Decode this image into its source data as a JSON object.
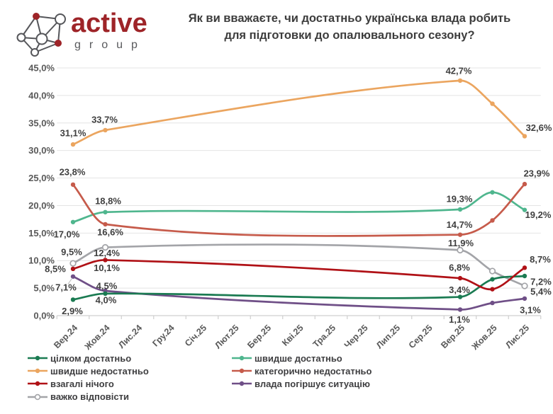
{
  "header": {
    "logo_brand": "active",
    "logo_sub": "group",
    "title_line1": "Як ви вважаєте, чи достатньо українська влада робить",
    "title_line2": "для підготовки до опалювального сезону?"
  },
  "colors": {
    "text_dark": "#3F3F3F",
    "axis_text": "#595959",
    "gridline": "#E4E4E4",
    "axis_line": "#CFCFCF",
    "brand_red": "#9E2428",
    "brand_gray": "#58595C"
  },
  "chart_data": {
    "type": "line",
    "title": "Як ви вважаєте, чи достатньо українська влада робить для підготовки до опалювального сезону?",
    "categories": [
      "Вер.24",
      "Жов.24",
      "Лис.24",
      "Гру.24",
      "Січ.25",
      "Лют.25",
      "Бер.25",
      "Кві.25",
      "Тра.25",
      "Чер.25",
      "Лип.25",
      "Сер.25",
      "Вер.25",
      "Жов.25",
      "Лис.25"
    ],
    "ylim": [
      0,
      45
    ],
    "ytick_step": 5,
    "ytick_labels": [
      "0,0%",
      "5,0%",
      "10,0%",
      "15,0%",
      "20,0%",
      "25,0%",
      "30,0%",
      "35,0%",
      "40,0%",
      "45,0%"
    ],
    "grid": true,
    "legend_position": "bottom-left two columns",
    "note": "Survey answers exist only for Вер.24, Жов.24, Вер.25, Жов.25, Лис.25; smoothed lines interpolate the gap. Жов.25 points are unlabeled in the image (values estimated from pixels).",
    "series": [
      {
        "name": "цілком достатньо",
        "color": "#1B7B52",
        "marker": "filled",
        "points": [
          {
            "cat": "Вер.24",
            "y": 2.9,
            "label": "2,9%",
            "dx": -1,
            "dy": 16
          },
          {
            "cat": "Жов.24",
            "y": 4.0,
            "label": "4,0%",
            "dx": 1,
            "dy": 9
          },
          {
            "cat": "Вер.25",
            "y": 3.4,
            "label": "3,4%",
            "dx": -1,
            "dy": -10
          },
          {
            "cat": "Жов.25",
            "y": 6.6,
            "estimated": true
          },
          {
            "cat": "Лис.25",
            "y": 7.2,
            "label": "7,2%",
            "dx": 23,
            "dy": 8
          }
        ]
      },
      {
        "name": "швидше достатньо",
        "color": "#4FB68E",
        "marker": "filled",
        "points": [
          {
            "cat": "Вер.24",
            "y": 17.0,
            "label": "17,0%",
            "dx": -9,
            "dy": 17
          },
          {
            "cat": "Жов.24",
            "y": 18.8,
            "label": "18,8%",
            "dx": 4,
            "dy": -16
          },
          {
            "cat": "Вер.25",
            "y": 19.3,
            "label": "19,3%",
            "dx": -1,
            "dy": -15
          },
          {
            "cat": "Жов.25",
            "y": 22.4,
            "estimated": true
          },
          {
            "cat": "Лис.25",
            "y": 19.2,
            "label": "19,2%",
            "dx": 19,
            "dy": 7
          }
        ]
      },
      {
        "name": "швидше недостатньо",
        "color": "#EBA55F",
        "marker": "filled",
        "points": [
          {
            "cat": "Вер.24",
            "y": 31.1,
            "label": "31,1%",
            "dx": 0,
            "dy": -16
          },
          {
            "cat": "Жов.24",
            "y": 33.7,
            "label": "33,7%",
            "dx": -1,
            "dy": -15
          },
          {
            "cat": "Вер.25",
            "y": 42.7,
            "label": "42,7%",
            "dx": -2,
            "dy": -14
          },
          {
            "cat": "Жов.25",
            "y": 38.5,
            "estimated": true
          },
          {
            "cat": "Лис.25",
            "y": 32.6,
            "label": "32,6%",
            "dx": 20,
            "dy": -12
          }
        ]
      },
      {
        "name": "категорично недостатньо",
        "color": "#C65B4B",
        "marker": "filled",
        "points": [
          {
            "cat": "Вер.24",
            "y": 23.8,
            "label": "23,8%",
            "dx": -1,
            "dy": -18
          },
          {
            "cat": "Жов.24",
            "y": 16.6,
            "label": "16,6%",
            "dx": 7,
            "dy": 11
          },
          {
            "cat": "Вер.25",
            "y": 14.7,
            "label": "14,7%",
            "dx": -1,
            "dy": -14
          },
          {
            "cat": "Жов.25",
            "y": 17.3,
            "estimated": true
          },
          {
            "cat": "Лис.25",
            "y": 23.9,
            "label": "23,9%",
            "dx": 17,
            "dy": -15
          }
        ]
      },
      {
        "name": "взагалі нічого",
        "color": "#B01116",
        "marker": "filled",
        "points": [
          {
            "cat": "Вер.24",
            "y": 8.5,
            "label": "8,5%",
            "dx": -25,
            "dy": 0
          },
          {
            "cat": "Жов.24",
            "y": 10.1,
            "label": "10,1%",
            "dx": 2,
            "dy": 11
          },
          {
            "cat": "Вер.25",
            "y": 6.8,
            "label": "6,8%",
            "dx": -1,
            "dy": -15
          },
          {
            "cat": "Жов.25",
            "y": 4.8,
            "estimated": true
          },
          {
            "cat": "Лис.25",
            "y": 8.7,
            "label": "8,7%",
            "dx": 22,
            "dy": -12
          }
        ]
      },
      {
        "name": "влада погіршує ситуацію",
        "color": "#6F4F87",
        "marker": "filled",
        "points": [
          {
            "cat": "Вер.24",
            "y": 7.1,
            "label": "7,1%",
            "dx": -10,
            "dy": 15,
            "leader": true
          },
          {
            "cat": "Жов.24",
            "y": 4.5,
            "label": "4,5%",
            "dx": 2,
            "dy": -7
          },
          {
            "cat": "Вер.25",
            "y": 1.1,
            "label": "1,1%",
            "dx": -1,
            "dy": 14
          },
          {
            "cat": "Жов.25",
            "y": 2.3,
            "estimated": true
          },
          {
            "cat": "Лис.25",
            "y": 3.1,
            "label": "3,1%",
            "dx": 8,
            "dy": 16
          }
        ]
      },
      {
        "name": "важко відповісти",
        "color": "#A3A4A8",
        "marker": "open",
        "points": [
          {
            "cat": "Вер.24",
            "y": 9.5,
            "label": "9,5%",
            "dx": -2,
            "dy": -16
          },
          {
            "cat": "Жов.24",
            "y": 12.4,
            "label": "12,4%",
            "dx": 2,
            "dy": 8
          },
          {
            "cat": "Вер.25",
            "y": 11.9,
            "label": "11,9%",
            "dx": 1,
            "dy": -10
          },
          {
            "cat": "Жов.25",
            "y": 8.1,
            "estimated": true
          },
          {
            "cat": "Лис.25",
            "y": 5.4,
            "label": "5,4%",
            "dx": 23,
            "dy": 8
          }
        ]
      }
    ],
    "draw_order": [
      "швидше недостатньо",
      "швидше достатньо",
      "категорично недостатньо",
      "важко відповісти",
      "влада погіршує ситуацію",
      "цілком достатньо",
      "взагалі нічого"
    ],
    "legend_columns": [
      [
        "цілком достатньо",
        "швидше недостатньо",
        "взагалі нічого",
        "важко відповісти"
      ],
      [
        "швидше достатньо",
        "категорично недостатньо",
        "влада погіршує ситуацію"
      ]
    ]
  }
}
